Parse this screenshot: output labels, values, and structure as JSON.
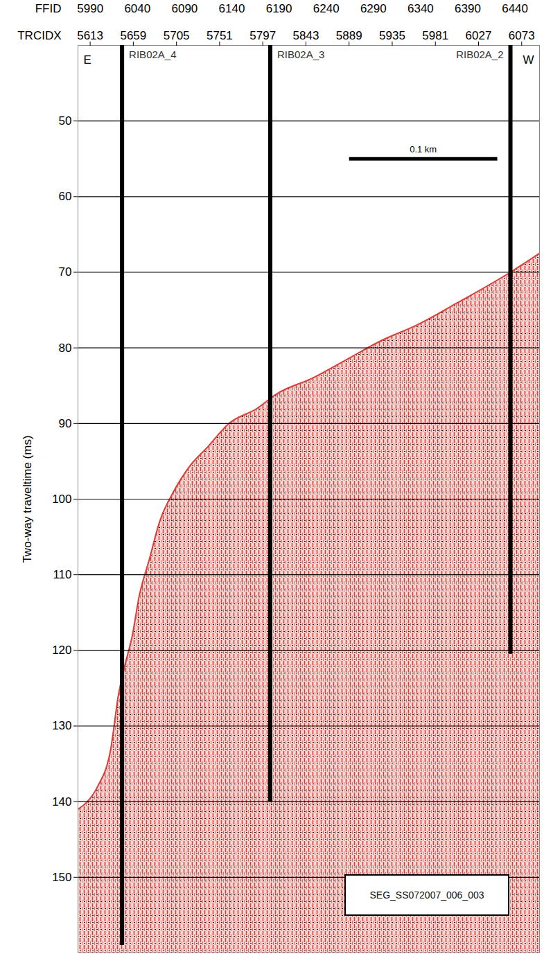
{
  "chart_data": {
    "type": "area",
    "x_label": "TRCIDX",
    "y_label": "Two-way traveltime (ms)",
    "xlim": [
      5600,
      6092
    ],
    "xticks": [
      5613,
      5659,
      5705,
      5751,
      5797,
      5843,
      5889,
      5935,
      5981,
      6027,
      6073
    ],
    "top_axis": {
      "label": "FFID",
      "lim": [
        5977,
        6466
      ],
      "ticks": [
        5990,
        6040,
        6090,
        6140,
        6190,
        6240,
        6290,
        6340,
        6390,
        6440
      ]
    },
    "ylim": [
      40,
      160
    ],
    "yticks": [
      50,
      60,
      70,
      80,
      90,
      100,
      110,
      120,
      130,
      140,
      150
    ],
    "grid": true,
    "color": "#d8403a",
    "x": [
      5600,
      5610,
      5621,
      5635,
      5643,
      5650,
      5658,
      5665,
      5676,
      5687,
      5702,
      5717,
      5739,
      5761,
      5791,
      5813,
      5850,
      5887,
      5924,
      5961,
      6005,
      6061,
      6092
    ],
    "values": [
      141,
      140,
      138,
      133,
      126,
      122,
      118,
      113,
      108,
      103,
      99,
      96,
      93,
      90,
      88,
      86,
      84,
      81.5,
      79,
      77,
      74,
      70,
      67.5
    ],
    "wells": [
      {
        "label": "RIB02A_4",
        "x": 5647,
        "bottom": 159
      },
      {
        "label": "RIB02A_3",
        "x": 5805,
        "bottom": 140
      },
      {
        "label": "RIB02A_2",
        "x": 6061,
        "bottom": 120.5
      }
    ],
    "direction_labels": [
      "E",
      "W"
    ],
    "scale_bar": {
      "label": "0.1 km",
      "x": [
        5889,
        6047
      ],
      "y": 55
    },
    "caption_box": "SEG_SS072007_006_003"
  }
}
